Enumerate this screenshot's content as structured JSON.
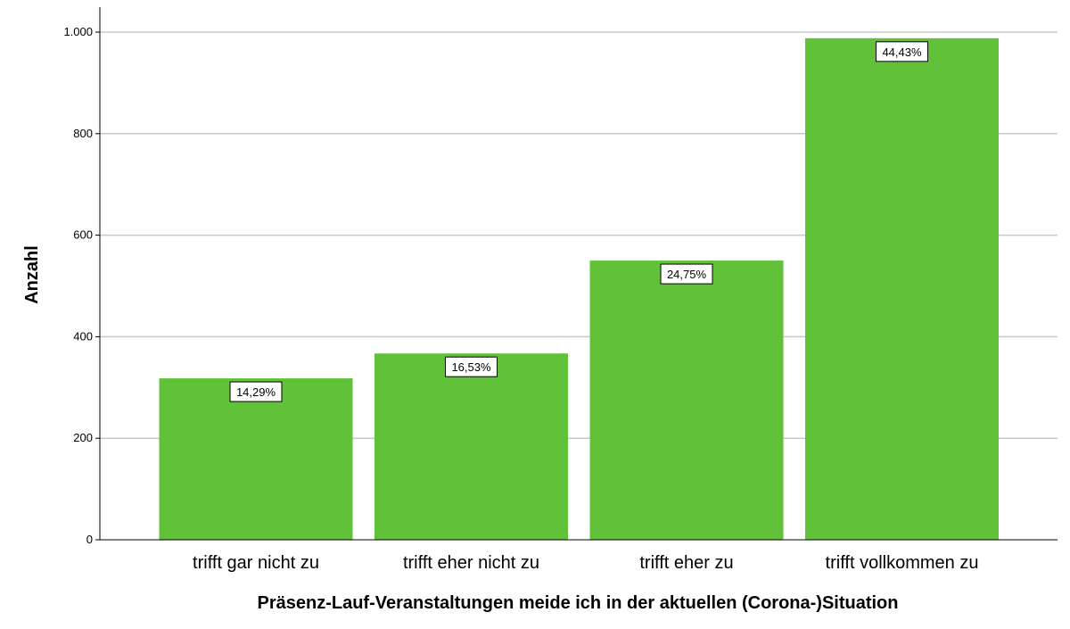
{
  "chart_data": {
    "type": "bar",
    "categories": [
      "trifft gar nicht zu",
      "trifft eher nicht zu",
      "trifft eher zu",
      "trifft vollkommen zu"
    ],
    "values": [
      318,
      367,
      550,
      988
    ],
    "data_labels": [
      "14,29%",
      "16,53%",
      "24,75%",
      "44,43%"
    ],
    "xlabel": "Präsenz-Lauf-Veranstaltungen meide ich in der aktuellen (Corona-)Situation",
    "ylabel": "Anzahl",
    "ylim": [
      0,
      1000
    ],
    "yticks": [
      0,
      200,
      400,
      600,
      800,
      1000
    ],
    "ytick_labels": [
      "0",
      "200",
      "400",
      "600",
      "800",
      "1.000"
    ],
    "grid": true,
    "bar_color": "#61c23a"
  }
}
